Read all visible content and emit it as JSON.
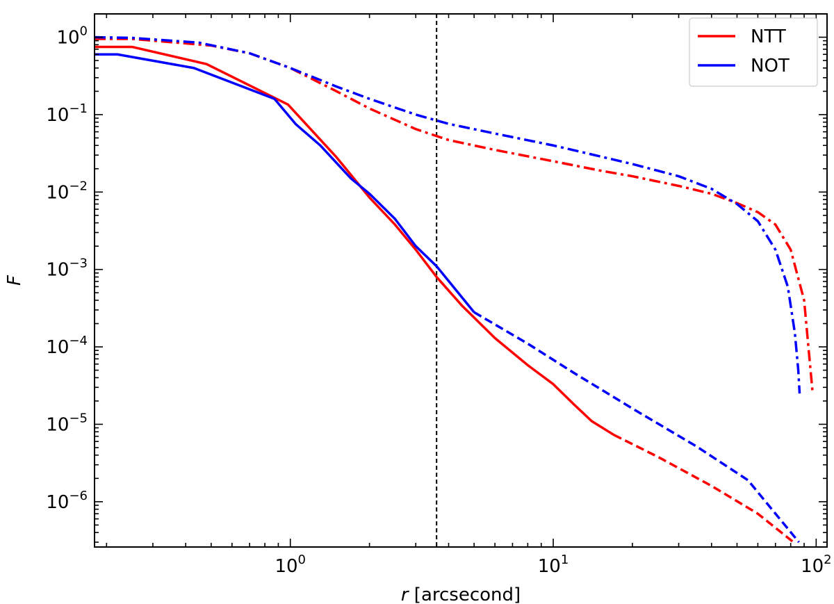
{
  "chart_data": {
    "type": "line",
    "title": "",
    "xlabel_var": "r",
    "xlabel_unit": " [arcsecond]",
    "ylabel": "F",
    "xscale": "log",
    "yscale": "log",
    "xlim": [
      0.18,
      110
    ],
    "ylim": [
      2.6e-07,
      2.0
    ],
    "x_major_ticks": [
      {
        "value": 1,
        "base": "10",
        "exp": "0"
      },
      {
        "value": 10,
        "base": "10",
        "exp": "1"
      },
      {
        "value": 100,
        "base": "10",
        "exp": "2"
      }
    ],
    "y_major_ticks": [
      {
        "value": 1e-06,
        "base": "10",
        "exp": "−6"
      },
      {
        "value": 1e-05,
        "base": "10",
        "exp": "−5"
      },
      {
        "value": 0.0001,
        "base": "10",
        "exp": "−4"
      },
      {
        "value": 0.001,
        "base": "10",
        "exp": "−3"
      },
      {
        "value": 0.01,
        "base": "10",
        "exp": "−2"
      },
      {
        "value": 0.1,
        "base": "10",
        "exp": "−1"
      },
      {
        "value": 1,
        "base": "10",
        "exp": "0"
      }
    ],
    "vline_x": 3.6,
    "legend": {
      "placement": "top-right",
      "entries": [
        {
          "label": "NTT",
          "color": "#ff0000"
        },
        {
          "label": "NOT",
          "color": "#0000ff"
        }
      ]
    },
    "grid": false,
    "series": [
      {
        "legend_ref": "NTT",
        "color": "#ff0000",
        "style": "solid",
        "x": [
          0.18,
          0.25,
          0.48,
          0.98,
          1.5,
          2.0,
          2.5,
          3.0,
          3.6,
          4.5,
          6.0,
          8.0,
          10.0,
          12.0,
          14.0,
          17.0
        ],
        "y": [
          0.75,
          0.75,
          0.45,
          0.135,
          0.028,
          0.0085,
          0.0038,
          0.0018,
          0.0008,
          0.00034,
          0.00013,
          5.8e-05,
          3.3e-05,
          1.8e-05,
          1.1e-05,
          7.3e-06
        ]
      },
      {
        "legend_ref": "NTT",
        "color": "#ff0000",
        "style": "dashed",
        "x": [
          17.0,
          25,
          40,
          60,
          82
        ],
        "y": [
          7.3e-06,
          3.8e-06,
          1.6e-06,
          7e-07,
          3e-07
        ]
      },
      {
        "legend_ref": "NTT",
        "color": "#ff0000",
        "style": "dashdot",
        "x": [
          0.18,
          0.25,
          0.5,
          0.7,
          1.0,
          1.5,
          2.0,
          3.0,
          4.0,
          6.0,
          10,
          15,
          20,
          30,
          40,
          50,
          60,
          70,
          80,
          90,
          94,
          97
        ],
        "y": [
          0.95,
          0.95,
          0.78,
          0.62,
          0.4,
          0.2,
          0.12,
          0.065,
          0.047,
          0.035,
          0.025,
          0.019,
          0.016,
          0.012,
          0.0095,
          0.0072,
          0.0055,
          0.0038,
          0.0018,
          0.0004,
          8e-05,
          2.5e-05
        ]
      },
      {
        "legend_ref": "NOT",
        "color": "#0000ff",
        "style": "solid",
        "x": [
          0.18,
          0.22,
          0.43,
          0.87,
          1.05,
          1.3,
          1.7,
          2.0,
          2.5,
          3.0,
          3.6,
          5.0
        ],
        "y": [
          0.6,
          0.6,
          0.4,
          0.16,
          0.075,
          0.04,
          0.015,
          0.0095,
          0.0045,
          0.002,
          0.0011,
          0.00028
        ]
      },
      {
        "legend_ref": "NOT",
        "color": "#0000ff",
        "style": "dashed",
        "x": [
          5.0,
          8,
          12,
          20,
          35,
          55,
          86
        ],
        "y": [
          0.00028,
          0.00011,
          4.6e-05,
          1.6e-05,
          5.2e-06,
          1.9e-06,
          3e-07
        ]
      },
      {
        "legend_ref": "NOT",
        "color": "#0000ff",
        "style": "dashdot",
        "x": [
          0.18,
          0.25,
          0.45,
          0.7,
          1.0,
          1.5,
          2.0,
          3.0,
          4.0,
          6.0,
          10,
          15,
          20,
          30,
          40,
          50,
          60,
          70,
          78,
          83,
          85.5,
          86.5
        ],
        "y": [
          1.0,
          0.98,
          0.85,
          0.62,
          0.4,
          0.23,
          0.16,
          0.1,
          0.076,
          0.057,
          0.04,
          0.029,
          0.023,
          0.016,
          0.011,
          0.007,
          0.0042,
          0.0018,
          0.0006,
          0.00015,
          5e-05,
          2.5e-05
        ]
      }
    ]
  }
}
